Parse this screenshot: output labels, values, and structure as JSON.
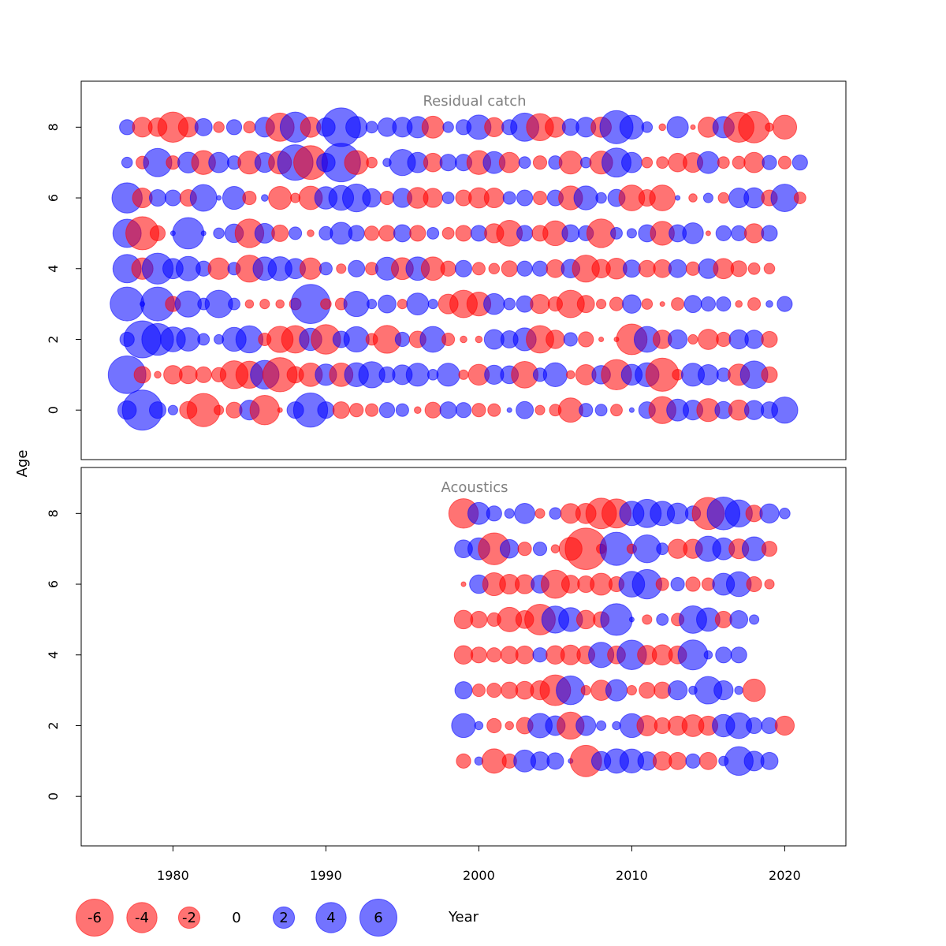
{
  "chart_data": {
    "type": "scatter",
    "subtype": "bubble",
    "xlabel": "Year",
    "ylabel": "Age",
    "xlim": [
      1974,
      2024
    ],
    "ylim": [
      -1.4,
      9.3
    ],
    "x_ticks": [
      1980,
      1990,
      2000,
      2010,
      2020
    ],
    "y_ticks": [
      0,
      2,
      4,
      6,
      8
    ],
    "colors": {
      "positive": "#0000ff",
      "negative": "#ff0000",
      "opacity": 0.55
    },
    "legend": {
      "placement": "bottom",
      "entries": [
        {
          "label": "-6",
          "value": -6
        },
        {
          "label": "-4",
          "value": -4
        },
        {
          "label": "-2",
          "value": -2
        },
        {
          "label": "0",
          "value": 0
        },
        {
          "label": "2",
          "value": 2
        },
        {
          "label": "4",
          "value": 4
        },
        {
          "label": "6",
          "value": 6
        }
      ]
    },
    "panels": [
      {
        "title": "Residual catch",
        "first_year": 1977,
        "by_age": {
          "8": [
            1.0,
            -1.7,
            -1.5,
            -4.0,
            -1.7,
            1.3,
            -0.5,
            1.0,
            -0.6,
            1.7,
            -3.5,
            4.0,
            -1.8,
            1.5,
            6.5,
            2.0,
            0.6,
            1.5,
            1.7,
            2.0,
            -2.1,
            0.5,
            1.0,
            2.6,
            -1.6,
            1.0,
            3.5,
            -3.2,
            -1.8,
            1.2,
            1.7,
            -1.8,
            4.8,
            2.5,
            0.5,
            -0.2,
            2.0,
            -0.1,
            -1.8,
            2.0,
            -4.0,
            -4.3,
            -0.3,
            -2.5
          ],
          "7": [
            0.5,
            -0.7,
            3.5,
            -0.8,
            1.9,
            -2.5,
            1.8,
            0.8,
            -2.3,
            1.7,
            -2.3,
            5.5,
            -5.0,
            1.5,
            6.5,
            -2.5,
            -0.5,
            0.3,
            3.0,
            1.8,
            -1.5,
            1.2,
            1.2,
            -2.5,
            2.1,
            -1.8,
            0.6,
            -0.8,
            0.8,
            -2.3,
            0.5,
            -2.3,
            3.7,
            1.8,
            -0.5,
            -0.6,
            -1.5,
            -1.7,
            2.1,
            -0.6,
            -0.7,
            -1.8,
            0.9,
            -0.7,
            1.0
          ],
          "6": [
            4.0,
            -1.7,
            1.2,
            1.1,
            -1.2,
            3.1,
            0.1,
            2.3,
            -0.8,
            0.2,
            -2.3,
            -0.4,
            -2.4,
            2.2,
            2.7,
            3.4,
            1.5,
            -0.8,
            1.6,
            -1.9,
            -1.6,
            0.6,
            -1.1,
            -1.8,
            -1.7,
            0.7,
            1.1,
            -0.8,
            1.1,
            -2.5,
            2.5,
            0.5,
            1.3,
            -2.9,
            -1.2,
            -2.9,
            0.1,
            -0.3,
            0.4,
            -0.5,
            1.7,
            1.8,
            -1.1,
            3.3,
            -0.6
          ],
          "5": [
            3.5,
            -4.8,
            -1.0,
            0.1,
            4.3,
            0.1,
            0.5,
            1.5,
            -3.6,
            1.7,
            -1.2,
            0.7,
            -0.2,
            0.8,
            2.1,
            1.1,
            -0.9,
            -1.1,
            1.3,
            -1.1,
            0.6,
            -0.6,
            -1.1,
            1.1,
            -1.6,
            -2.9,
            1.1,
            -1.1,
            -2.7,
            1.3,
            1.0,
            -3.6,
            0.6,
            0.4,
            1.3,
            -2.5,
            1.3,
            1.9,
            -0.1,
            1.0,
            1.0,
            -1.6,
            1.1
          ],
          "4": [
            3.5,
            -2.0,
            4.2,
            1.8,
            2.6,
            1.0,
            -2.0,
            0.7,
            -3.2,
            2.4,
            2.5,
            1.8,
            -2.0,
            0.7,
            -0.4,
            1.2,
            -0.7,
            2.3,
            -2.1,
            2.4,
            -2.4,
            -1.0,
            1.2,
            -0.7,
            -0.5,
            -1.1,
            1.0,
            1.0,
            -1.4,
            1.5,
            -3.2,
            -1.5,
            -1.9,
            1.3,
            -1.2,
            -1.4,
            1.4,
            -0.8,
            1.7,
            -1.8,
            -1.1,
            -0.6,
            -0.5
          ],
          "3": [
            5.0,
            0.1,
            5.0,
            -1.0,
            3.0,
            0.6,
            3.3,
            0.6,
            -0.3,
            -0.4,
            -0.3,
            -0.6,
            6.7,
            -0.5,
            -0.6,
            2.8,
            0.4,
            1.4,
            -0.4,
            2.1,
            0.4,
            -1.7,
            -3.3,
            -2.5,
            1.9,
            0.6,
            1.2,
            -1.6,
            -0.9,
            -3.3,
            -1.3,
            -0.4,
            -0.8,
            1.5,
            -0.5,
            -0.1,
            -0.7,
            1.3,
            0.9,
            0.9,
            -0.2,
            -0.7,
            0.2,
            1.0
          ],
          "2": [
            0.9,
            6.0,
            4.4,
            2.7,
            2.4,
            0.6,
            0.4,
            2.5,
            3.2,
            -0.7,
            -3.0,
            -3.3,
            2.2,
            -3.8,
            1.2,
            2.8,
            -0.6,
            -3.4,
            0.9,
            -1.2,
            2.9,
            -0.7,
            -0.2,
            -0.2,
            1.7,
            1.3,
            2.3,
            -3.3,
            -1.5,
            0.8,
            -1.0,
            -0.1,
            -0.1,
            -4.1,
            2.9,
            -1.5,
            1.6,
            -0.4,
            -1.8,
            -0.9,
            1.6,
            1.5,
            -1.1
          ],
          "1": [
            6.2,
            -1.2,
            -0.2,
            -1.5,
            -1.4,
            -1.1,
            -0.9,
            -3.4,
            -3.2,
            3.6,
            -5.1,
            -1.2,
            -2.4,
            2.0,
            -2.4,
            2.5,
            3.0,
            1.1,
            1.7,
            2.3,
            0.5,
            2.3,
            -0.4,
            -1.9,
            1.6,
            1.4,
            -3.1,
            0.8,
            2.5,
            -0.3,
            -1.8,
            1.5,
            -4.0,
            1.9,
            2.5,
            -4.8,
            -0.5,
            2.3,
            1.8,
            0.8,
            -2.0,
            3.3,
            -1.1
          ],
          "0": [
            1.5,
            7.0,
            1.2,
            0.4,
            -1.3,
            -4.8,
            -0.4,
            -1.1,
            1.7,
            -3.8,
            -0.1,
            1.2,
            5.1,
            1.2,
            -1.2,
            -0.8,
            -0.7,
            1.0,
            0.7,
            -0.2,
            -1.1,
            1.2,
            1.0,
            -0.8,
            -0.7,
            0.1,
            1.3,
            -0.4,
            -0.6,
            -2.6,
            0.8,
            0.6,
            -0.6,
            0.1,
            1.2,
            -3.2,
            2.1,
            1.7,
            -2.3,
            1.3,
            -1.8,
            1.6,
            1.2,
            3.0
          ]
        },
        "age_year_offset": {
          "8": 0,
          "7": 0,
          "6": 0,
          "5": 0,
          "4": 0,
          "3": 0,
          "2": 0,
          "1": 0,
          "0": 0
        }
      },
      {
        "title": "Acoustics",
        "first_year": 1999,
        "by_age": {
          "8": [
            -3.8,
            2.1,
            1.0,
            0.4,
            1.8,
            -0.4,
            0.6,
            -1.7,
            -1.8,
            -4.1,
            -3.7,
            2.6,
            3.5,
            2.6,
            1.9,
            1.0,
            -4.5,
            4.7,
            3.2,
            -1.2,
            1.6,
            0.5
          ],
          "7": [
            1.4,
            2.1,
            -4.4,
            1.5,
            -0.8,
            0.8,
            -0.3,
            -2.3,
            -7.5,
            -0.4,
            4.8,
            -0.4,
            3.4,
            0.6,
            -1.6,
            -1.6,
            2.8,
            2.1,
            -1.7,
            2.5,
            -1.0
          ],
          "6": [
            -0.1,
            1.5,
            -2.3,
            -1.7,
            -1.6,
            1.4,
            -3.5,
            -1.4,
            -1.2,
            -2.1,
            -1.0,
            2.9,
            3.8,
            -0.7,
            0.8,
            -0.9,
            -0.7,
            2.1,
            2.7,
            -1.0,
            -0.4
          ],
          "5": [
            -1.5,
            -1.2,
            -0.8,
            -2.6,
            -1.4,
            -4.1,
            3.2,
            2.5,
            -1.5,
            -1.1,
            4.4,
            0.1,
            -0.4,
            0.6,
            -0.7,
            3.3,
            2.4,
            -1.2,
            1.4,
            0.4
          ],
          "4": [
            -1.5,
            -1.1,
            -0.9,
            -1.3,
            -1.4,
            0.9,
            -1.5,
            -1.7,
            -1.4,
            2.8,
            -1.4,
            3.8,
            -1.6,
            -1.8,
            -1.4,
            3.9,
            0.3,
            1.1,
            1.1
          ],
          "3": [
            1.3,
            -0.7,
            -0.9,
            -1.2,
            -1.4,
            -1.6,
            -4.1,
            3.6,
            -0.4,
            -1.8,
            2.0,
            -0.4,
            -1.1,
            -1.2,
            1.6,
            0.3,
            3.3,
            1.6,
            0.3,
            -2.2
          ],
          "2": [
            2.5,
            0.3,
            -0.9,
            -0.3,
            -1.2,
            2.6,
            1.7,
            -3.2,
            1.7,
            0.4,
            0.3,
            2.5,
            -1.8,
            -1.1,
            -1.6,
            -2.1,
            -1.6,
            2.2,
            2.9,
            1.1,
            1.1,
            -1.6
          ],
          "1": [
            -0.9,
            0.3,
            -2.6,
            -0.9,
            2.1,
            1.5,
            1.2,
            0.1,
            -4.3,
            1.6,
            2.6,
            2.5,
            1.5,
            -1.5,
            -1.3,
            0.9,
            -1.3,
            0.4,
            3.6,
            1.7,
            1.3
          ],
          "0": []
        },
        "age_year_offset": {
          "8": 0,
          "7": 0,
          "6": 0,
          "5": 0,
          "4": 0,
          "3": 0,
          "2": 0,
          "1": 0,
          "0": 0
        }
      }
    ]
  }
}
